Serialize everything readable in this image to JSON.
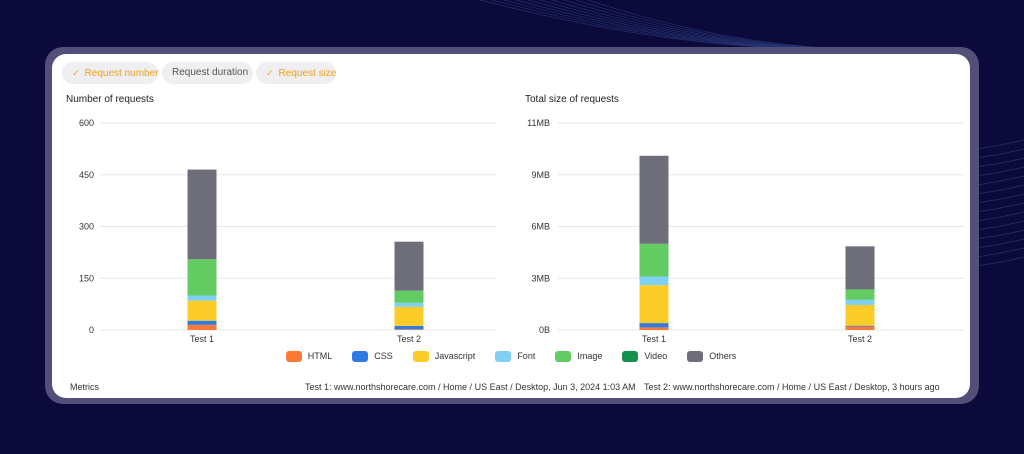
{
  "chips": [
    {
      "label": "Request number",
      "active": true
    },
    {
      "label": "Request duration",
      "active": false
    },
    {
      "label": "Request size",
      "active": true
    }
  ],
  "colors": {
    "HTML": "#fb7a35",
    "CSS": "#2f7be2",
    "Javascript": "#fccc29",
    "Font": "#7fd0f4",
    "Image": "#62cc63",
    "Video": "#15914b",
    "Others": "#6e6d7a"
  },
  "legend": [
    "HTML",
    "CSS",
    "Javascript",
    "Font",
    "Image",
    "Video",
    "Others"
  ],
  "chart_data": [
    {
      "type": "bar",
      "stacked": true,
      "title": "Number of requests",
      "categories": [
        "Test 1",
        "Test 2"
      ],
      "yticks": [
        "0",
        "150",
        "300",
        "450",
        "600"
      ],
      "ylim": [
        0,
        600
      ],
      "series": [
        {
          "name": "HTML",
          "values": [
            15,
            2
          ]
        },
        {
          "name": "CSS",
          "values": [
            12,
            10
          ]
        },
        {
          "name": "Javascript",
          "values": [
            58,
            55
          ]
        },
        {
          "name": "Font",
          "values": [
            15,
            12
          ]
        },
        {
          "name": "Image",
          "values": [
            105,
            35
          ]
        },
        {
          "name": "Video",
          "values": [
            0,
            0
          ]
        },
        {
          "name": "Others",
          "values": [
            260,
            142
          ]
        }
      ]
    },
    {
      "type": "bar",
      "stacked": true,
      "title": "Total size of requests",
      "categories": [
        "Test 1",
        "Test 2"
      ],
      "yticks": [
        "0B",
        "3MB",
        "6MB",
        "9MB",
        "11MB"
      ],
      "ylim": [
        0,
        12
      ],
      "series": [
        {
          "name": "HTML",
          "values": [
            0.15,
            0.2
          ]
        },
        {
          "name": "CSS",
          "values": [
            0.25,
            0.05
          ]
        },
        {
          "name": "Javascript",
          "values": [
            2.2,
            1.2
          ]
        },
        {
          "name": "Font",
          "values": [
            0.5,
            0.3
          ]
        },
        {
          "name": "Image",
          "values": [
            1.9,
            0.6
          ]
        },
        {
          "name": "Video",
          "values": [
            0,
            0
          ]
        },
        {
          "name": "Others",
          "values": [
            5.1,
            2.5
          ]
        }
      ]
    }
  ],
  "footer": {
    "metrics_label": "Metrics",
    "test1": "Test 1: www.northshorecare.com / Home / US East / Desktop, Jun 3, 2024 1:03 AM",
    "test2": "Test 2: www.northshorecare.com / Home / US East / Desktop, 3 hours ago"
  }
}
